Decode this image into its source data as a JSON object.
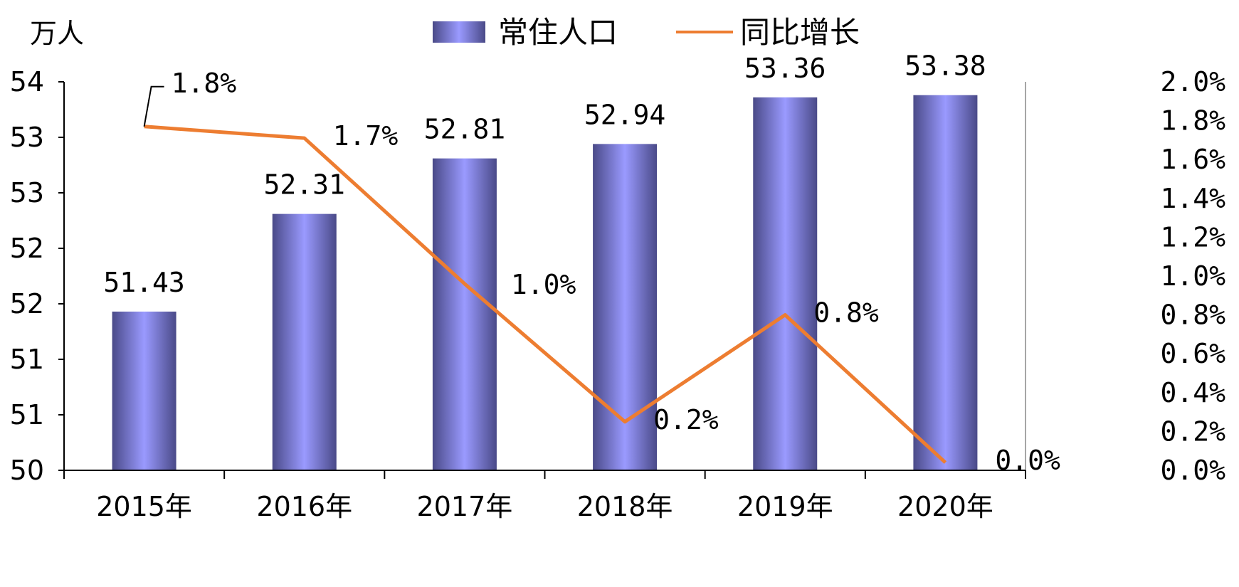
{
  "chart_data": {
    "type": "bar",
    "categories": [
      "2015年",
      "2016年",
      "2017年",
      "2018年",
      "2019年",
      "2020年"
    ],
    "series": [
      {
        "name": "常住人口",
        "type": "bar",
        "axis": "left",
        "values": [
          51.43,
          52.31,
          52.81,
          52.94,
          53.36,
          53.38
        ],
        "labels": [
          "51.43",
          "52.31",
          "52.81",
          "52.94",
          "53.36",
          "53.38"
        ]
      },
      {
        "name": "同比增长",
        "type": "line",
        "axis": "right",
        "values": [
          1.77,
          1.71,
          0.96,
          0.25,
          0.8,
          0.04
        ],
        "labels": [
          "1.8%",
          "1.7%",
          "1.0%",
          "0.2%",
          "0.8%",
          "0.0%"
        ]
      }
    ],
    "left_axis": {
      "unit": "万人",
      "ylim": [
        50,
        53.5
      ],
      "ticks": [
        50,
        50.5,
        51,
        51.5,
        52,
        52.5,
        53,
        53.5
      ],
      "tick_labels": [
        "50",
        "51",
        "51",
        "52",
        "52",
        "53",
        "53",
        "54"
      ]
    },
    "right_axis": {
      "ylim": [
        0,
        2.0
      ],
      "ticks": [
        0,
        0.2,
        0.4,
        0.6,
        0.8,
        1.0,
        1.2,
        1.4,
        1.6,
        1.8,
        2.0
      ],
      "tick_labels": [
        "0.0%",
        "0.2%",
        "0.4%",
        "0.6%",
        "0.8%",
        "1.0%",
        "1.2%",
        "1.4%",
        "1.6%",
        "1.8%",
        "2.0%"
      ]
    },
    "legend_position": "top-center",
    "grid": false,
    "colors": {
      "bar_edge": "#4a4a88",
      "bar_center": "#9a9aff",
      "line": "#ed7d31",
      "axis": "#000000",
      "right_axis": "#a6a6a6"
    }
  }
}
